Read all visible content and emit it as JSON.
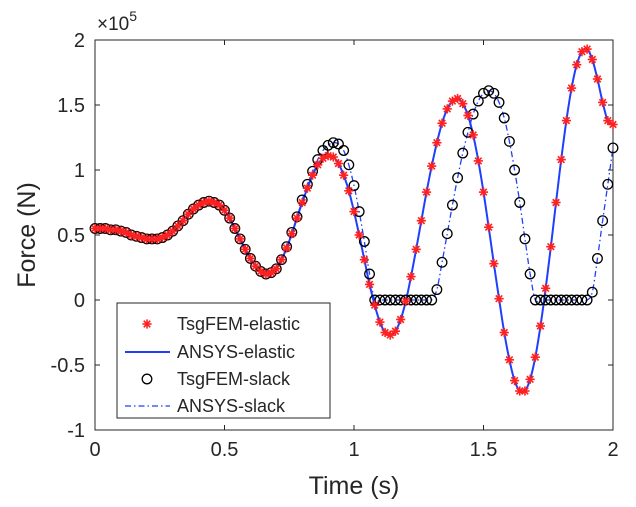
{
  "chart_data": {
    "type": "line",
    "title": "",
    "xlabel": "Time (s)",
    "ylabel": "Force (N)",
    "xlim": [
      0,
      2
    ],
    "ylim": [
      -1,
      2
    ],
    "y_multiplier": "×10",
    "y_exponent": "5",
    "xticks": [
      0,
      0.5,
      1,
      1.5,
      2
    ],
    "xtick_labels": [
      "0",
      "0.5",
      "1",
      "1.5",
      "2"
    ],
    "yticks": [
      -1,
      -0.5,
      0,
      0.5,
      1,
      1.5,
      2
    ],
    "ytick_labels": [
      "-1",
      "-0.5",
      "0",
      "0.5",
      "1",
      "1.5",
      "2"
    ],
    "grid": false,
    "legend_position": "bottom-left",
    "colors": {
      "elastic_fem": "#ff2020",
      "elastic_ansys": "#1f3fff",
      "slack_fem": "#000000",
      "slack_ansys": "#1f3fff",
      "axes": "#262626"
    },
    "series": [
      {
        "name": "TsgFEM-elastic",
        "style": "asterisk-markers",
        "x": [
          0,
          0.02,
          0.04,
          0.06,
          0.08,
          0.1,
          0.12,
          0.14,
          0.16,
          0.18,
          0.2,
          0.22,
          0.24,
          0.26,
          0.28,
          0.3,
          0.32,
          0.34,
          0.36,
          0.38,
          0.4,
          0.42,
          0.44,
          0.46,
          0.48,
          0.5,
          0.52,
          0.54,
          0.56,
          0.58,
          0.6,
          0.62,
          0.64,
          0.66,
          0.68,
          0.7,
          0.72,
          0.74,
          0.76,
          0.78,
          0.8,
          0.82,
          0.84,
          0.86,
          0.88,
          0.9,
          0.92,
          0.94,
          0.96,
          0.98,
          1.0,
          1.02,
          1.04,
          1.06,
          1.08,
          1.1,
          1.12,
          1.14,
          1.16,
          1.18,
          1.2,
          1.22,
          1.24,
          1.26,
          1.28,
          1.3,
          1.32,
          1.34,
          1.36,
          1.38,
          1.4,
          1.42,
          1.44,
          1.46,
          1.48,
          1.5,
          1.52,
          1.54,
          1.56,
          1.58,
          1.6,
          1.62,
          1.64,
          1.66,
          1.68,
          1.7,
          1.72,
          1.74,
          1.76,
          1.78,
          1.8,
          1.82,
          1.84,
          1.86,
          1.88,
          1.9,
          1.92,
          1.94,
          1.96,
          1.98,
          2.0
        ],
        "y": [
          0.55,
          0.55,
          0.55,
          0.54,
          0.54,
          0.53,
          0.52,
          0.5,
          0.49,
          0.48,
          0.47,
          0.47,
          0.47,
          0.48,
          0.5,
          0.53,
          0.57,
          0.61,
          0.66,
          0.7,
          0.73,
          0.75,
          0.76,
          0.75,
          0.73,
          0.69,
          0.63,
          0.55,
          0.47,
          0.39,
          0.32,
          0.26,
          0.22,
          0.2,
          0.21,
          0.24,
          0.31,
          0.4,
          0.51,
          0.63,
          0.75,
          0.86,
          0.96,
          1.04,
          1.09,
          1.11,
          1.1,
          1.05,
          0.96,
          0.84,
          0.68,
          0.5,
          0.31,
          0.12,
          -0.04,
          -0.17,
          -0.25,
          -0.27,
          -0.24,
          -0.15,
          -0.01,
          0.18,
          0.39,
          0.61,
          0.83,
          1.03,
          1.21,
          1.36,
          1.47,
          1.53,
          1.55,
          1.51,
          1.42,
          1.27,
          1.07,
          0.83,
          0.56,
          0.28,
          0.01,
          -0.25,
          -0.46,
          -0.62,
          -0.7,
          -0.7,
          -0.61,
          -0.44,
          -0.2,
          0.09,
          0.41,
          0.75,
          1.08,
          1.38,
          1.63,
          1.81,
          1.91,
          1.93,
          1.85,
          1.7,
          1.52,
          1.38,
          1.35
        ]
      },
      {
        "name": "ANSYS-elastic",
        "style": "solid-line",
        "x": [
          0,
          0.02,
          0.04,
          0.06,
          0.08,
          0.1,
          0.12,
          0.14,
          0.16,
          0.18,
          0.2,
          0.22,
          0.24,
          0.26,
          0.28,
          0.3,
          0.32,
          0.34,
          0.36,
          0.38,
          0.4,
          0.42,
          0.44,
          0.46,
          0.48,
          0.5,
          0.52,
          0.54,
          0.56,
          0.58,
          0.6,
          0.62,
          0.64,
          0.66,
          0.68,
          0.7,
          0.72,
          0.74,
          0.76,
          0.78,
          0.8,
          0.82,
          0.84,
          0.86,
          0.88,
          0.9,
          0.92,
          0.94,
          0.96,
          0.98,
          1.0,
          1.02,
          1.04,
          1.06,
          1.08,
          1.1,
          1.12,
          1.14,
          1.16,
          1.18,
          1.2,
          1.22,
          1.24,
          1.26,
          1.28,
          1.3,
          1.32,
          1.34,
          1.36,
          1.38,
          1.4,
          1.42,
          1.44,
          1.46,
          1.48,
          1.5,
          1.52,
          1.54,
          1.56,
          1.58,
          1.6,
          1.62,
          1.64,
          1.66,
          1.68,
          1.7,
          1.72,
          1.74,
          1.76,
          1.78,
          1.8,
          1.82,
          1.84,
          1.86,
          1.88,
          1.9,
          1.92,
          1.94,
          1.96,
          1.98,
          2.0
        ],
        "y": [
          0.55,
          0.55,
          0.55,
          0.54,
          0.54,
          0.53,
          0.52,
          0.5,
          0.49,
          0.48,
          0.47,
          0.47,
          0.47,
          0.48,
          0.5,
          0.53,
          0.57,
          0.61,
          0.66,
          0.7,
          0.73,
          0.75,
          0.76,
          0.75,
          0.73,
          0.69,
          0.63,
          0.55,
          0.47,
          0.39,
          0.32,
          0.26,
          0.22,
          0.2,
          0.21,
          0.24,
          0.31,
          0.4,
          0.51,
          0.63,
          0.75,
          0.86,
          0.96,
          1.04,
          1.09,
          1.11,
          1.1,
          1.05,
          0.96,
          0.84,
          0.68,
          0.5,
          0.31,
          0.12,
          -0.04,
          -0.17,
          -0.25,
          -0.27,
          -0.24,
          -0.15,
          -0.01,
          0.18,
          0.39,
          0.61,
          0.83,
          1.03,
          1.21,
          1.36,
          1.47,
          1.53,
          1.55,
          1.51,
          1.42,
          1.27,
          1.07,
          0.83,
          0.56,
          0.28,
          0.01,
          -0.25,
          -0.46,
          -0.62,
          -0.7,
          -0.7,
          -0.61,
          -0.44,
          -0.2,
          0.09,
          0.41,
          0.75,
          1.08,
          1.38,
          1.63,
          1.81,
          1.91,
          1.93,
          1.85,
          1.7,
          1.52,
          1.38,
          1.35
        ]
      },
      {
        "name": "TsgFEM-slack",
        "style": "circle-markers",
        "x": [
          0,
          0.02,
          0.04,
          0.06,
          0.08,
          0.1,
          0.12,
          0.14,
          0.16,
          0.18,
          0.2,
          0.22,
          0.24,
          0.26,
          0.28,
          0.3,
          0.32,
          0.34,
          0.36,
          0.38,
          0.4,
          0.42,
          0.44,
          0.46,
          0.48,
          0.5,
          0.52,
          0.54,
          0.56,
          0.58,
          0.6,
          0.62,
          0.64,
          0.66,
          0.68,
          0.7,
          0.72,
          0.74,
          0.76,
          0.78,
          0.8,
          0.82,
          0.84,
          0.86,
          0.88,
          0.9,
          0.92,
          0.94,
          0.96,
          0.98,
          1.0,
          1.02,
          1.04,
          1.06,
          1.08,
          1.1,
          1.12,
          1.14,
          1.16,
          1.18,
          1.2,
          1.22,
          1.24,
          1.26,
          1.28,
          1.3,
          1.32,
          1.34,
          1.36,
          1.38,
          1.4,
          1.42,
          1.44,
          1.46,
          1.48,
          1.5,
          1.52,
          1.54,
          1.56,
          1.58,
          1.6,
          1.62,
          1.64,
          1.66,
          1.68,
          1.7,
          1.72,
          1.74,
          1.76,
          1.78,
          1.8,
          1.82,
          1.84,
          1.86,
          1.88,
          1.9,
          1.92,
          1.94,
          1.96,
          1.98,
          2.0
        ],
        "y": [
          0.55,
          0.55,
          0.55,
          0.54,
          0.54,
          0.53,
          0.52,
          0.5,
          0.49,
          0.48,
          0.47,
          0.47,
          0.47,
          0.48,
          0.5,
          0.53,
          0.57,
          0.61,
          0.66,
          0.7,
          0.73,
          0.75,
          0.76,
          0.75,
          0.73,
          0.69,
          0.63,
          0.55,
          0.47,
          0.39,
          0.32,
          0.26,
          0.22,
          0.2,
          0.21,
          0.24,
          0.31,
          0.41,
          0.52,
          0.64,
          0.77,
          0.89,
          0.99,
          1.08,
          1.15,
          1.19,
          1.21,
          1.2,
          1.15,
          1.04,
          0.88,
          0.68,
          0.45,
          0.2,
          0,
          0,
          0,
          0,
          0,
          0,
          0,
          0,
          0,
          0,
          0,
          0,
          0.08,
          0.29,
          0.51,
          0.73,
          0.94,
          1.13,
          1.29,
          1.43,
          1.53,
          1.59,
          1.61,
          1.59,
          1.52,
          1.4,
          1.22,
          1.0,
          0.75,
          0.47,
          0.2,
          0,
          0,
          0,
          0,
          0,
          0,
          0,
          0,
          0,
          0,
          0,
          0.06,
          0.32,
          0.61,
          0.89,
          1.17
        ]
      },
      {
        "name": "ANSYS-slack",
        "style": "dash-dot-line",
        "x": [
          0,
          0.02,
          0.04,
          0.06,
          0.08,
          0.1,
          0.12,
          0.14,
          0.16,
          0.18,
          0.2,
          0.22,
          0.24,
          0.26,
          0.28,
          0.3,
          0.32,
          0.34,
          0.36,
          0.38,
          0.4,
          0.42,
          0.44,
          0.46,
          0.48,
          0.5,
          0.52,
          0.54,
          0.56,
          0.58,
          0.6,
          0.62,
          0.64,
          0.66,
          0.68,
          0.7,
          0.72,
          0.74,
          0.76,
          0.78,
          0.8,
          0.82,
          0.84,
          0.86,
          0.88,
          0.9,
          0.92,
          0.94,
          0.96,
          0.98,
          1.0,
          1.02,
          1.04,
          1.06,
          1.08,
          1.1,
          1.12,
          1.14,
          1.16,
          1.18,
          1.2,
          1.22,
          1.24,
          1.26,
          1.28,
          1.3,
          1.32,
          1.34,
          1.36,
          1.38,
          1.4,
          1.42,
          1.44,
          1.46,
          1.48,
          1.5,
          1.52,
          1.54,
          1.56,
          1.58,
          1.6,
          1.62,
          1.64,
          1.66,
          1.68,
          1.7,
          1.72,
          1.74,
          1.76,
          1.78,
          1.8,
          1.82,
          1.84,
          1.86,
          1.88,
          1.9,
          1.92,
          1.94,
          1.96,
          1.98,
          2.0
        ],
        "y": [
          0.55,
          0.55,
          0.55,
          0.54,
          0.54,
          0.53,
          0.52,
          0.5,
          0.49,
          0.48,
          0.47,
          0.47,
          0.47,
          0.48,
          0.5,
          0.53,
          0.57,
          0.61,
          0.66,
          0.7,
          0.73,
          0.75,
          0.76,
          0.75,
          0.73,
          0.69,
          0.63,
          0.55,
          0.47,
          0.39,
          0.32,
          0.26,
          0.22,
          0.2,
          0.21,
          0.24,
          0.31,
          0.41,
          0.52,
          0.64,
          0.77,
          0.89,
          0.99,
          1.08,
          1.15,
          1.19,
          1.21,
          1.2,
          1.15,
          1.04,
          0.88,
          0.68,
          0.45,
          0.2,
          0,
          0,
          0,
          0,
          0,
          0,
          0,
          0,
          0,
          0,
          0,
          0,
          0.08,
          0.29,
          0.51,
          0.73,
          0.94,
          1.13,
          1.29,
          1.43,
          1.53,
          1.59,
          1.61,
          1.59,
          1.52,
          1.4,
          1.22,
          1.0,
          0.75,
          0.47,
          0.2,
          0,
          0,
          0,
          0,
          0,
          0,
          0,
          0,
          0,
          0,
          0,
          0.06,
          0.32,
          0.61,
          0.89,
          1.17
        ]
      }
    ]
  }
}
